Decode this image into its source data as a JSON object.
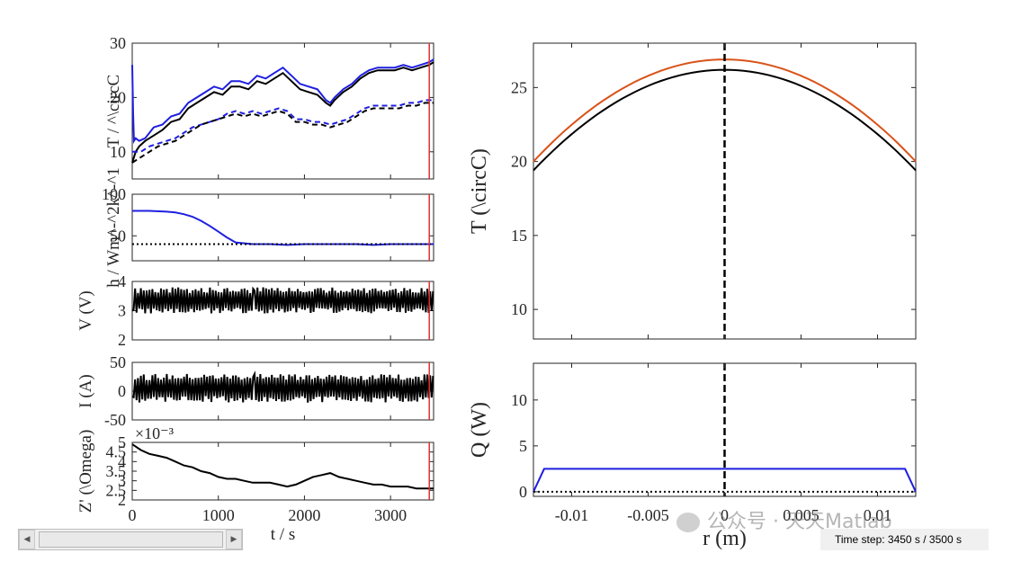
{
  "colors": {
    "black": "#000000",
    "blue": "#1f1fe0",
    "orange": "#d95319",
    "red": "#e03030",
    "axis": "#262626"
  },
  "left_panels": {
    "time_xlabel": "t  /  s",
    "x_ticks": [
      "0",
      "1000",
      "2000",
      "3000"
    ]
  },
  "right_panels": {
    "r_xlabel": "r  (m)",
    "r_ticks": [
      "-0.01",
      "-0.005",
      "0",
      "0.005",
      "0.01"
    ]
  },
  "chart_data": [
    {
      "type": "line",
      "ylabel": "T  /  ^\\circC",
      "y_ticks": [
        "10",
        "20",
        "30"
      ],
      "ylim": [
        5,
        30
      ],
      "xlim": [
        0,
        3500
      ],
      "series": [
        {
          "color": "blue",
          "style": "solid",
          "x": [
            0,
            10,
            20,
            40,
            80,
            150,
            250,
            350,
            450,
            550,
            650,
            750,
            850,
            950,
            1050,
            1150,
            1250,
            1350,
            1450,
            1550,
            1650,
            1750,
            1850,
            1950,
            2050,
            2150,
            2250,
            2300,
            2350,
            2450,
            2550,
            2650,
            2750,
            2850,
            2950,
            3050,
            3150,
            3250,
            3350,
            3450,
            3500
          ],
          "y": [
            26,
            17,
            12,
            12.5,
            12,
            12.5,
            14.5,
            15,
            16.5,
            17,
            19,
            20,
            21,
            22,
            21.5,
            23,
            23,
            22.5,
            24,
            23.5,
            24.5,
            25.5,
            24,
            22.5,
            22,
            21.5,
            19.5,
            19,
            20,
            21.5,
            22.5,
            24,
            25,
            25.5,
            25.5,
            25.5,
            26,
            25.5,
            26,
            26.5,
            27
          ]
        },
        {
          "color": "black",
          "style": "solid",
          "x": [
            0,
            40,
            80,
            150,
            250,
            350,
            450,
            550,
            650,
            750,
            850,
            950,
            1050,
            1150,
            1250,
            1350,
            1450,
            1550,
            1650,
            1750,
            1850,
            1950,
            2050,
            2150,
            2250,
            2300,
            2350,
            2450,
            2550,
            2650,
            2750,
            2850,
            2950,
            3050,
            3150,
            3250,
            3350,
            3450,
            3500
          ],
          "y": [
            8,
            10,
            11,
            12,
            13,
            14,
            15.5,
            16,
            18,
            19,
            20,
            21,
            20.5,
            22,
            22,
            21.5,
            23,
            22.5,
            23.5,
            24.5,
            23,
            21.5,
            21,
            20.5,
            19,
            18.5,
            19.5,
            21,
            22,
            23.5,
            24.5,
            25,
            25,
            25,
            25.5,
            25,
            25.5,
            26,
            26.5
          ]
        },
        {
          "color": "blue",
          "style": "dashed",
          "x": [
            0,
            100,
            200,
            300,
            400,
            500,
            600,
            700,
            800,
            900,
            1000,
            1100,
            1200,
            1300,
            1400,
            1500,
            1600,
            1700,
            1800,
            1900,
            2000,
            2100,
            2200,
            2300,
            2400,
            2500,
            2600,
            2700,
            2800,
            2900,
            3000,
            3100,
            3200,
            3300,
            3400,
            3500
          ],
          "y": [
            10,
            10,
            11,
            11.5,
            12,
            12.5,
            13.5,
            14.5,
            15,
            15.5,
            16,
            17,
            17.5,
            17,
            17.5,
            17,
            17.5,
            18,
            17.5,
            16,
            16,
            15.5,
            15.5,
            15,
            15.5,
            16,
            17,
            18,
            18.5,
            18.5,
            18.5,
            18.5,
            19,
            19,
            19.5,
            19.5
          ]
        },
        {
          "color": "black",
          "style": "dashed",
          "x": [
            0,
            100,
            200,
            300,
            400,
            500,
            600,
            700,
            800,
            900,
            1000,
            1100,
            1200,
            1300,
            1400,
            1500,
            1600,
            1700,
            1800,
            1900,
            2000,
            2100,
            2200,
            2300,
            2400,
            2500,
            2600,
            2700,
            2800,
            2900,
            3000,
            3100,
            3200,
            3300,
            3400,
            3500
          ],
          "y": [
            8,
            9,
            10,
            11,
            11.5,
            12,
            13,
            14,
            15,
            15.5,
            16,
            16.5,
            17,
            16.5,
            17,
            16.5,
            17,
            17.5,
            17,
            15.5,
            15.5,
            15,
            15,
            14.5,
            15,
            15.5,
            16.5,
            17.5,
            18,
            18,
            18,
            18,
            18.5,
            18.5,
            19,
            19
          ]
        }
      ]
    },
    {
      "type": "line",
      "ylabel": "h  /  Wm^-^2k^-^1",
      "y_ticks": [
        "50",
        "100"
      ],
      "ylim": [
        20,
        100
      ],
      "xlim": [
        0,
        3500
      ],
      "series": [
        {
          "color": "blue",
          "style": "solid",
          "x": [
            0,
            200,
            400,
            500,
            600,
            700,
            800,
            900,
            1000,
            1100,
            1200,
            1400,
            1600,
            1800,
            2000,
            2200,
            2400,
            2600,
            2800,
            3000,
            3200,
            3400,
            3500
          ],
          "y": [
            80,
            80,
            79,
            78,
            76,
            73,
            68,
            62,
            55,
            48,
            42,
            40,
            40,
            39,
            40,
            40,
            40,
            40,
            39,
            40,
            40,
            40,
            40
          ]
        },
        {
          "color": "black",
          "style": "dotted",
          "x": [
            0,
            3500
          ],
          "y": [
            40,
            40
          ]
        }
      ]
    },
    {
      "type": "line",
      "ylabel": "V  (V)",
      "y_ticks": [
        "2",
        "3",
        "4"
      ],
      "ylim": [
        2,
        4
      ],
      "xlim": [
        0,
        3500
      ],
      "series": [
        {
          "color": "black",
          "style": "solid",
          "note": "oscillating",
          "range": [
            2.9,
            3.8
          ]
        }
      ]
    },
    {
      "type": "line",
      "ylabel": "I  (A)",
      "y_ticks": [
        "-50",
        "0",
        "50"
      ],
      "ylim": [
        -50,
        50
      ],
      "xlim": [
        0,
        3500
      ],
      "series": [
        {
          "color": "black",
          "style": "solid",
          "note": "oscillating",
          "range": [
            -20,
            30
          ]
        }
      ]
    },
    {
      "type": "line",
      "ylabel": "Z' (\\Omega)",
      "y_ticks": [
        "2",
        "2.5",
        "3",
        "3.5",
        "4",
        "4.5",
        "5"
      ],
      "exponent": "×10⁻³",
      "ylim": [
        2,
        5
      ],
      "xlim": [
        0,
        3500
      ],
      "series": [
        {
          "color": "black",
          "style": "solid",
          "x": [
            0,
            100,
            200,
            300,
            400,
            500,
            600,
            700,
            800,
            900,
            1000,
            1100,
            1200,
            1300,
            1400,
            1500,
            1600,
            1700,
            1800,
            1900,
            2000,
            2100,
            2200,
            2300,
            2400,
            2500,
            2600,
            2700,
            2800,
            2900,
            3000,
            3100,
            3200,
            3300,
            3400,
            3500
          ],
          "y": [
            4.9,
            4.6,
            4.4,
            4.3,
            4.2,
            4.0,
            3.8,
            3.7,
            3.5,
            3.4,
            3.2,
            3.1,
            3.1,
            3.0,
            2.9,
            2.9,
            2.9,
            2.8,
            2.7,
            2.8,
            3.0,
            3.2,
            3.3,
            3.4,
            3.2,
            3.1,
            3.0,
            2.9,
            2.8,
            2.8,
            2.7,
            2.7,
            2.7,
            2.6,
            2.6,
            2.6
          ]
        }
      ]
    },
    {
      "type": "line",
      "ylabel": "T  (\\circC)",
      "y_ticks": [
        "10",
        "15",
        "20",
        "25"
      ],
      "ylim": [
        8,
        28
      ],
      "xlim": [
        -0.0125,
        0.0125
      ],
      "series": [
        {
          "color": "orange",
          "style": "solid",
          "profile": "parabola",
          "edge": 20,
          "center": 26.9
        },
        {
          "color": "black",
          "style": "solid",
          "profile": "parabola",
          "edge": 19.4,
          "center": 26.2
        }
      ],
      "marker_x": 0
    },
    {
      "type": "line",
      "ylabel": "Q  (W)",
      "y_ticks": [
        "0",
        "5",
        "10"
      ],
      "ylim": [
        -0.5,
        14
      ],
      "xlim": [
        -0.0125,
        0.0125
      ],
      "series": [
        {
          "color": "blue",
          "style": "solid",
          "x": [
            -0.0125,
            -0.0118,
            0.0118,
            0.0125
          ],
          "y": [
            0,
            2.5,
            2.5,
            0
          ]
        },
        {
          "color": "black",
          "style": "dotted",
          "x": [
            -0.0125,
            0.0125
          ],
          "y": [
            0,
            0
          ]
        }
      ],
      "marker_x": 0
    }
  ],
  "time_marker": 3450,
  "status": {
    "time_step": "Time step: 3450 s / 3500 s"
  },
  "watermark": {
    "text": "公众号 · 天天Matlab"
  }
}
